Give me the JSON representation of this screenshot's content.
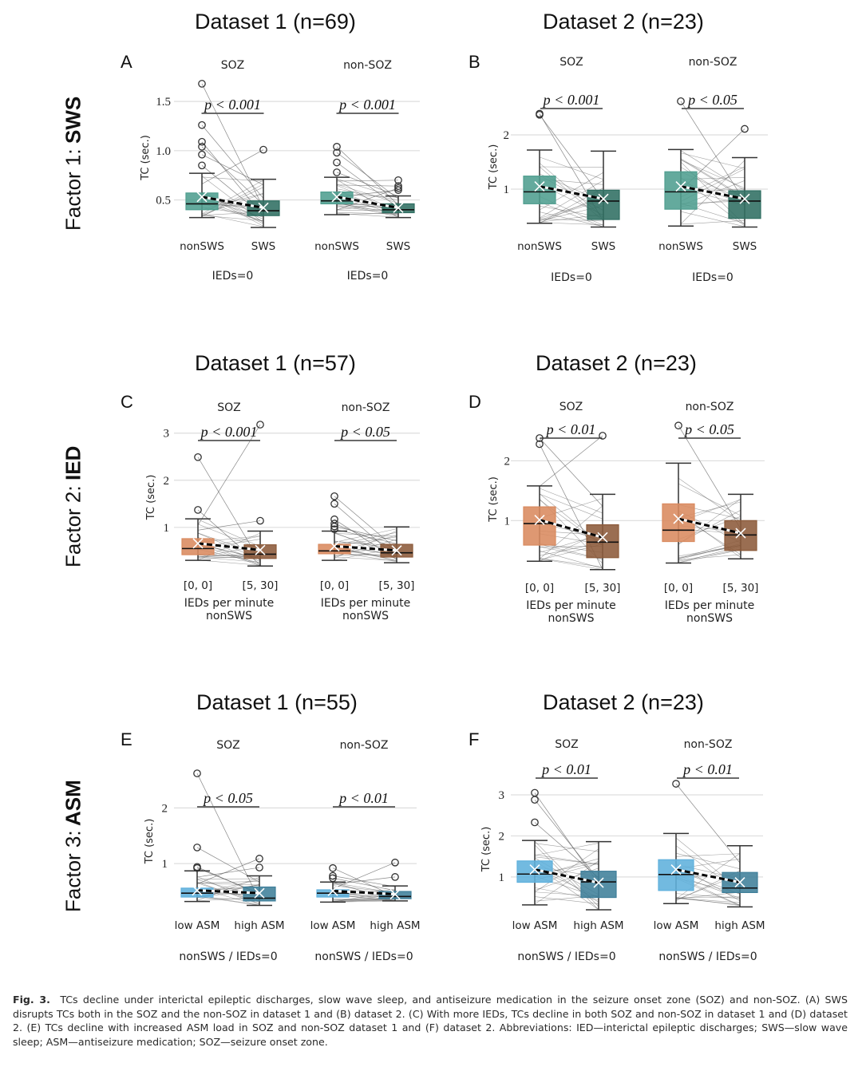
{
  "figure": {
    "factors": [
      {
        "prefix": "Factor 1: ",
        "name": "SWS"
      },
      {
        "prefix": "Factor 2: ",
        "name": "IED"
      },
      {
        "prefix": "Factor 3: ",
        "name": "ASM"
      }
    ],
    "row_titles": [
      [
        "Dataset 1 (n=69)",
        "Dataset 2 (n=23)"
      ],
      [
        "Dataset 1 (n=57)",
        "Dataset 2 (n=23)"
      ],
      [
        "Dataset 1 (n=55)",
        "Dataset 2 (n=23)"
      ]
    ],
    "caption": {
      "label": "Fig. 3.",
      "text": "TCs decline under interictal epileptic discharges, slow wave sleep, and antiseizure medication in the seizure onset zone (SOZ) and non-SOZ. (A) SWS disrupts TCs both in the SOZ and the non-SOZ in dataset 1 and (B) dataset 2. (C) With more IEDs, TCs decline in both SOZ and non-SOZ in dataset 1 and (D) dataset 2. (E) TCs decline with increased ASM load in SOZ and non-SOZ dataset 1 and (F) dataset 2. Abbreviations: IED—interictal epileptic discharges; SWS—slow wave sleep; ASM—antiseizure medication; SOZ—seizure onset zone."
    },
    "colors": {
      "sws_light": "#4f9e8f",
      "sws_dark": "#2f6e62",
      "ied_light": "#d98a5f",
      "ied_dark": "#8c5a3a",
      "asm_light": "#5fb0dc",
      "asm_dark": "#3f7f9a",
      "grid": "#dddddd",
      "pair_line": "#555555"
    }
  },
  "chart_data": [
    {
      "panel": "A",
      "type": "box",
      "ylabel": "TC (sec.)",
      "ylim": [
        0.22,
        1.72
      ],
      "yticks": [
        0.5,
        1.0,
        1.5
      ],
      "ytick_labels": [
        "0.5",
        "1.0",
        "1.5"
      ],
      "grid": true,
      "color_keys": [
        "sws_light",
        "sws_dark"
      ],
      "groups": [
        {
          "title": "SOZ",
          "pvalue": "p < 0.001",
          "sublabel": "IEDs=0",
          "categories": [
            "nonSWS",
            "SWS"
          ],
          "boxes": [
            {
              "whisker_low": 0.32,
              "q1": 0.4,
              "median": 0.46,
              "q3": 0.57,
              "whisker_high": 0.77,
              "mean": 0.53,
              "outliers": [
                0.85,
                0.96,
                1.04,
                1.09,
                1.26,
                1.68
              ]
            },
            {
              "whisker_low": 0.22,
              "q1": 0.34,
              "median": 0.39,
              "q3": 0.49,
              "whisker_high": 0.71,
              "mean": 0.42,
              "outliers": [
                1.01
              ]
            }
          ]
        },
        {
          "title": "non-SOZ",
          "pvalue": "p < 0.001",
          "sublabel": "IEDs=0",
          "categories": [
            "nonSWS",
            "SWS"
          ],
          "boxes": [
            {
              "whisker_low": 0.35,
              "q1": 0.46,
              "median": 0.49,
              "q3": 0.58,
              "whisker_high": 0.73,
              "mean": 0.53,
              "outliers": [
                0.78,
                0.88,
                0.98,
                1.04
              ]
            },
            {
              "whisker_low": 0.32,
              "q1": 0.37,
              "median": 0.4,
              "q3": 0.46,
              "whisker_high": 0.54,
              "mean": 0.42,
              "outliers": [
                0.6,
                0.62,
                0.64,
                0.7
              ]
            }
          ]
        }
      ]
    },
    {
      "panel": "B",
      "type": "box",
      "ylabel": "TC (sec.)",
      "ylim": [
        0.22,
        2.75
      ],
      "yticks": [
        1,
        2
      ],
      "ytick_labels": [
        "1",
        "2"
      ],
      "grid": true,
      "color_keys": [
        "sws_light",
        "sws_dark"
      ],
      "groups": [
        {
          "title": "SOZ",
          "pvalue": "p < 0.001",
          "sublabel": "IEDs=0",
          "categories": [
            "nonSWS",
            "SWS"
          ],
          "boxes": [
            {
              "whisker_low": 0.37,
              "q1": 0.73,
              "median": 0.95,
              "q3": 1.24,
              "whisker_high": 1.72,
              "mean": 1.05,
              "outliers": [
                2.37,
                2.39
              ]
            },
            {
              "whisker_low": 0.3,
              "q1": 0.44,
              "median": 0.78,
              "q3": 0.98,
              "whisker_high": 1.7,
              "mean": 0.82,
              "outliers": []
            }
          ]
        },
        {
          "title": "non-SOZ",
          "pvalue": "p < 0.05",
          "sublabel": "IEDs=0",
          "categories": [
            "nonSWS",
            "SWS"
          ],
          "boxes": [
            {
              "whisker_low": 0.32,
              "q1": 0.63,
              "median": 0.95,
              "q3": 1.32,
              "whisker_high": 1.73,
              "mean": 1.05,
              "outliers": [
                2.62
              ]
            },
            {
              "whisker_low": 0.3,
              "q1": 0.46,
              "median": 0.78,
              "q3": 0.97,
              "whisker_high": 1.58,
              "mean": 0.82,
              "outliers": [
                2.11
              ]
            }
          ]
        }
      ]
    },
    {
      "panel": "C",
      "type": "box",
      "ylabel": "TC (sec.)",
      "ylim": [
        0.15,
        3.3
      ],
      "yticks": [
        1,
        2,
        3
      ],
      "ytick_labels": [
        "1",
        "2",
        "3"
      ],
      "grid": true,
      "color_keys": [
        "ied_light",
        "ied_dark"
      ],
      "groups": [
        {
          "title": "SOZ",
          "pvalue": "p < 0.001",
          "sublabel": "IEDs per minute\nnonSWS",
          "categories": [
            "[0, 0]",
            "[5, 30]"
          ],
          "boxes": [
            {
              "whisker_low": 0.3,
              "q1": 0.42,
              "median": 0.55,
              "q3": 0.76,
              "whisker_high": 1.18,
              "mean": 0.66,
              "outliers": [
                1.37,
                2.49
              ]
            },
            {
              "whisker_low": 0.18,
              "q1": 0.34,
              "median": 0.43,
              "q3": 0.63,
              "whisker_high": 0.92,
              "mean": 0.52,
              "outliers": [
                1.14,
                3.18
              ]
            }
          ]
        },
        {
          "title": "non-SOZ",
          "pvalue": "p < 0.05",
          "sublabel": "IEDs per minute\nnonSWS",
          "categories": [
            "[0, 0]",
            "[5, 30]"
          ],
          "boxes": [
            {
              "whisker_low": 0.3,
              "q1": 0.44,
              "median": 0.5,
              "q3": 0.64,
              "whisker_high": 0.92,
              "mean": 0.6,
              "outliers": [
                0.96,
                1.02,
                1.08,
                1.17,
                1.5,
                1.66
              ]
            },
            {
              "whisker_low": 0.25,
              "q1": 0.37,
              "median": 0.46,
              "q3": 0.64,
              "whisker_high": 1.01,
              "mean": 0.51,
              "outliers": []
            }
          ]
        }
      ]
    },
    {
      "panel": "D",
      "type": "box",
      "ylabel": "TC (sec.)",
      "ylim": [
        0.15,
        2.7
      ],
      "yticks": [
        1,
        2
      ],
      "ytick_labels": [
        "1",
        "2"
      ],
      "grid": true,
      "color_keys": [
        "ied_light",
        "ied_dark"
      ],
      "groups": [
        {
          "title": "SOZ",
          "pvalue": "p < 0.01",
          "sublabel": "IEDs per minute\nnonSWS",
          "categories": [
            "[0, 0]",
            "[5, 30]"
          ],
          "boxes": [
            {
              "whisker_low": 0.32,
              "q1": 0.59,
              "median": 0.95,
              "q3": 1.23,
              "whisker_high": 1.58,
              "mean": 1.01,
              "outliers": [
                2.28,
                2.38
              ]
            },
            {
              "whisker_low": 0.18,
              "q1": 0.38,
              "median": 0.64,
              "q3": 0.93,
              "whisker_high": 1.44,
              "mean": 0.72,
              "outliers": [
                2.42
              ]
            }
          ]
        },
        {
          "title": "non-SOZ",
          "pvalue": "p < 0.05",
          "sublabel": "IEDs per minute\nnonSWS",
          "categories": [
            "[0, 0]",
            "[5, 30]"
          ],
          "boxes": [
            {
              "whisker_low": 0.29,
              "q1": 0.65,
              "median": 0.84,
              "q3": 1.28,
              "whisker_high": 1.96,
              "mean": 1.03,
              "outliers": [
                2.59
              ]
            },
            {
              "whisker_low": 0.36,
              "q1": 0.5,
              "median": 0.76,
              "q3": 1.0,
              "whisker_high": 1.44,
              "mean": 0.79,
              "outliers": []
            }
          ]
        }
      ]
    },
    {
      "panel": "E",
      "type": "box",
      "ylabel": "TC (sec.)",
      "ylim": [
        0.2,
        2.75
      ],
      "yticks": [
        1,
        2
      ],
      "ytick_labels": [
        "1",
        "2"
      ],
      "grid": true,
      "color_keys": [
        "asm_light",
        "asm_dark"
      ],
      "groups": [
        {
          "title": "SOZ",
          "pvalue": "p < 0.05",
          "sublabel": "nonSWS  /  IEDs=0",
          "categories": [
            "low ASM",
            "high ASM"
          ],
          "boxes": [
            {
              "whisker_low": 0.32,
              "q1": 0.4,
              "median": 0.47,
              "q3": 0.56,
              "whisker_high": 0.87,
              "mean": 0.52,
              "outliers": [
                0.92,
                0.94,
                1.29,
                2.62
              ]
            },
            {
              "whisker_low": 0.25,
              "q1": 0.33,
              "median": 0.38,
              "q3": 0.58,
              "whisker_high": 0.78,
              "mean": 0.47,
              "outliers": [
                0.93,
                1.09
              ]
            }
          ]
        },
        {
          "title": "non-SOZ",
          "pvalue": "p < 0.01",
          "sublabel": "nonSWS  /  IEDs=0",
          "categories": [
            "low ASM",
            "high ASM"
          ],
          "boxes": [
            {
              "whisker_low": 0.31,
              "q1": 0.4,
              "median": 0.47,
              "q3": 0.53,
              "whisker_high": 0.67,
              "mean": 0.51,
              "outliers": [
                0.74,
                0.78,
                0.92
              ]
            },
            {
              "whisker_low": 0.33,
              "q1": 0.37,
              "median": 0.41,
              "q3": 0.5,
              "whisker_high": 0.6,
              "mean": 0.45,
              "outliers": [
                0.76,
                1.02
              ]
            }
          ]
        }
      ]
    },
    {
      "panel": "F",
      "type": "box",
      "ylabel": "TC (sec.)",
      "ylim": [
        0.2,
        3.35
      ],
      "yticks": [
        1,
        2,
        3
      ],
      "ytick_labels": [
        "1",
        "2",
        "3"
      ],
      "grid": true,
      "color_keys": [
        "asm_light",
        "asm_dark"
      ],
      "groups": [
        {
          "title": "SOZ",
          "pvalue": "p < 0.01",
          "sublabel": "nonSWS  /  IEDs=0",
          "categories": [
            "low ASM",
            "high ASM"
          ],
          "boxes": [
            {
              "whisker_low": 0.32,
              "q1": 0.87,
              "median": 1.07,
              "q3": 1.39,
              "whisker_high": 1.89,
              "mean": 1.18,
              "outliers": [
                2.33,
                2.88,
                3.05
              ]
            },
            {
              "whisker_low": 0.2,
              "q1": 0.5,
              "median": 0.88,
              "q3": 1.14,
              "whisker_high": 1.86,
              "mean": 0.86,
              "outliers": []
            }
          ]
        },
        {
          "title": "non-SOZ",
          "pvalue": "p < 0.01",
          "sublabel": "nonSWS  /  IEDs=0",
          "categories": [
            "low ASM",
            "high ASM"
          ],
          "boxes": [
            {
              "whisker_low": 0.35,
              "q1": 0.67,
              "median": 1.06,
              "q3": 1.42,
              "whisker_high": 2.06,
              "mean": 1.18,
              "outliers": [
                3.27
              ]
            },
            {
              "whisker_low": 0.27,
              "q1": 0.62,
              "median": 0.73,
              "q3": 1.11,
              "whisker_high": 1.76,
              "mean": 0.87,
              "outliers": []
            }
          ]
        }
      ]
    }
  ]
}
